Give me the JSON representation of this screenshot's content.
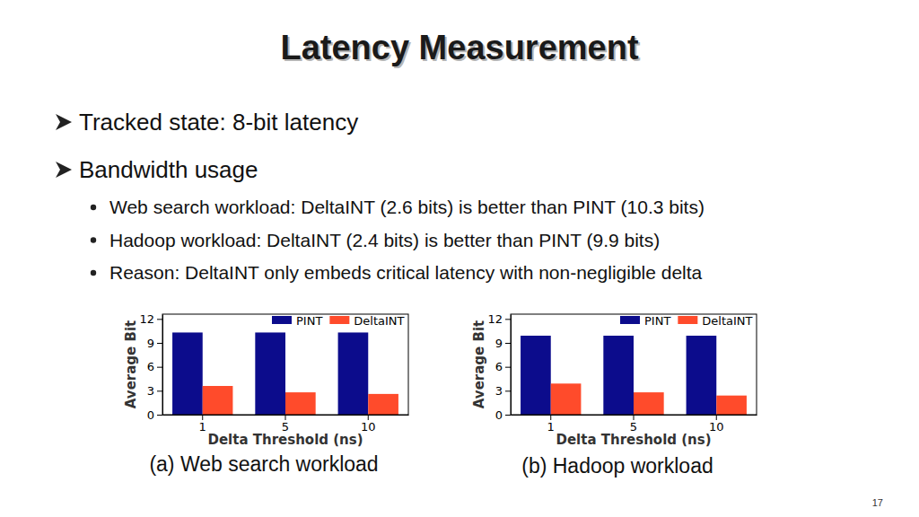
{
  "slide": {
    "title": "Latency Measurement",
    "bullets": [
      {
        "text": "Tracked state: 8-bit latency"
      },
      {
        "text": "Bandwidth usage",
        "sub": [
          "Web search workload: DeltaINT (2.6 bits) is better than PINT (10.3 bits)",
          "Hadoop workload: DeltaINT (2.4 bits) is better than PINT (9.9 bits)",
          "Reason: DeltaINT only embeds critical latency with non-negligible delta"
        ]
      }
    ],
    "page_number": 17
  },
  "chart_data": [
    {
      "type": "bar",
      "caption": "(a) Web search workload",
      "x_label": "Delta Threshold (ns)",
      "y_label": "Average Bit",
      "categories": [
        1,
        5,
        10
      ],
      "series": [
        {
          "name": "PINT",
          "color": "#0c0c8c",
          "values": [
            10.3,
            10.3,
            10.3
          ]
        },
        {
          "name": "DeltaINT",
          "color": "#ff4b2b",
          "values": [
            3.6,
            2.8,
            2.6
          ]
        }
      ],
      "ylim": [
        0,
        12.6
      ],
      "yticks": [
        0,
        3,
        6,
        9,
        12
      ],
      "legend": "upper right",
      "grid": false
    },
    {
      "type": "bar",
      "caption": "(b) Hadoop workload",
      "x_label": "Delta Threshold (ns)",
      "y_label": "Average Bit",
      "categories": [
        1,
        5,
        10
      ],
      "series": [
        {
          "name": "PINT",
          "color": "#0c0c8c",
          "values": [
            9.9,
            9.9,
            9.9
          ]
        },
        {
          "name": "DeltaINT",
          "color": "#ff4b2b",
          "values": [
            3.9,
            2.8,
            2.4
          ]
        }
      ],
      "ylim": [
        0,
        12.6
      ],
      "yticks": [
        0,
        3,
        6,
        9,
        12
      ],
      "legend": "upper right",
      "grid": false
    }
  ]
}
